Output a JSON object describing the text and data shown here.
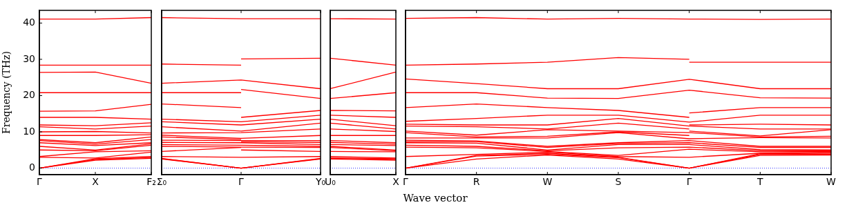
{
  "chart_data": [
    {
      "type": "line",
      "ylabel": "Frequency (THz)",
      "categories": [
        "Γ",
        "X",
        "F₂"
      ],
      "ylim": [
        -1.8,
        43.5
      ],
      "yticks": [
        0,
        10,
        20,
        30,
        40
      ],
      "marker": "none",
      "ref_lines": [
        {
          "axis": "y",
          "value": 0,
          "color": "#0000ff",
          "line_style": "dotted"
        }
      ],
      "series": [
        {
          "color": "#ff0000",
          "values": [
            0,
            2.2,
            2.7
          ]
        },
        {
          "color": "#ff0000",
          "values": [
            0,
            2.4,
            2.9
          ]
        },
        {
          "color": "#ff0000",
          "values": [
            0,
            2.6,
            3.2
          ]
        },
        {
          "color": "#ff0000",
          "values": [
            3.0,
            2.8,
            4.4
          ]
        },
        {
          "color": "#ff0000",
          "values": [
            3.2,
            4.5,
            4.8
          ]
        },
        {
          "color": "#ff0000",
          "values": [
            5.0,
            4.8,
            6.3
          ]
        },
        {
          "color": "#ff0000",
          "values": [
            6.0,
            5.0,
            6.7
          ]
        },
        {
          "color": "#ff0000",
          "values": [
            7.0,
            6.2,
            7.0
          ]
        },
        {
          "color": "#ff0000",
          "values": [
            7.6,
            6.6,
            7.9
          ]
        },
        {
          "color": "#ff0000",
          "values": [
            7.9,
            7.0,
            8.6
          ]
        },
        {
          "color": "#ff0000",
          "values": [
            9.0,
            9.0,
            9.2
          ]
        },
        {
          "color": "#ff0000",
          "values": [
            10.0,
            10.1,
            9.7
          ]
        },
        {
          "color": "#ff0000",
          "values": [
            11.4,
            10.8,
            11.6
          ]
        },
        {
          "color": "#ff0000",
          "values": [
            11.9,
            11.7,
            12.5
          ]
        },
        {
          "color": "#ff0000",
          "values": [
            14.0,
            14.0,
            13.5
          ]
        },
        {
          "color": "#ff0000",
          "values": [
            15.7,
            15.8,
            17.6
          ]
        },
        {
          "color": "#ff0000",
          "values": [
            20.8,
            20.8,
            20.8
          ]
        },
        {
          "color": "#ff0000",
          "values": [
            26.4,
            26.5,
            23.4
          ]
        },
        {
          "color": "#ff0000",
          "values": [
            28.4,
            28.4,
            28.4
          ]
        },
        {
          "color": "#ff0000",
          "values": [
            41.1,
            41.1,
            41.5
          ]
        }
      ]
    },
    {
      "type": "line",
      "categories": [
        "Σ₀",
        "Γ",
        "Y₀"
      ],
      "ylim": [
        -1.8,
        43.5
      ],
      "yticks": [
        0,
        10,
        20,
        30,
        40
      ],
      "tick_labels": "x",
      "marker": "none",
      "ref_lines": [
        {
          "axis": "y",
          "value": 0,
          "color": "#0000ff",
          "line_style": "dotted"
        }
      ],
      "series": [
        {
          "color": "#ff0000",
          "values": [
            2.5,
            0,
            2.5
          ]
        },
        {
          "color": "#ff0000",
          "values": [
            2.7,
            0,
            2.7
          ]
        },
        {
          "color": "#ff0000",
          "values": [
            2.6,
            0,
            2.6
          ]
        },
        {
          "color": "#ff0000",
          "values": [
            3.2,
            3.0,
            3.2
          ]
        },
        {
          "color": "#ff0000",
          "values": [
            6.0,
            5.8,
            5.7
          ]
        },
        {
          "color": "#ff0000",
          "values": [
            6.5,
            6.3,
            6.0
          ]
        },
        {
          "color": "#ff0000",
          "values": [
            7.1,
            7.0,
            6.5
          ]
        },
        {
          "color": "#ff0000",
          "values": [
            7.7,
            7.6,
            7.6
          ]
        },
        {
          "color": "#ff0000",
          "values": [
            9.1,
            8.2,
            9.0
          ]
        },
        {
          "color": "#ff0000",
          "values": [
            9.7,
            9.8,
            10.8
          ]
        },
        {
          "color": "#ff0000",
          "values": [
            11.4,
            10.2,
            12.4
          ]
        },
        {
          "color": "#ff0000",
          "values": [
            12.8,
            11.9,
            13.5
          ]
        },
        {
          "color": "#ff0000",
          "values": [
            13.5,
            12.8,
            14.6
          ]
        },
        {
          "color": "#ff0000",
          "values": [
            23.4,
            24.3,
            21.9
          ]
        },
        {
          "color": "#ff0000",
          "values": [
            41.5,
            41.2,
            41.2
          ]
        },
        {
          "color": "#ff0000",
          "values": [
            4.6,
            5.7,
            null
          ]
        },
        {
          "color": "#ff0000",
          "values": [
            8.6,
            7.9,
            null
          ]
        },
        {
          "color": "#ff0000",
          "values": [
            17.7,
            16.7,
            null
          ]
        },
        {
          "color": "#ff0000",
          "values": [
            20.8,
            20.8,
            null
          ]
        },
        {
          "color": "#ff0000",
          "values": [
            28.7,
            28.4,
            null
          ]
        },
        {
          "color": "#ff0000",
          "values": [
            null,
            5.0,
            4.6
          ]
        },
        {
          "color": "#ff0000",
          "values": [
            null,
            7.3,
            7.1
          ]
        },
        {
          "color": "#ff0000",
          "values": [
            null,
            14.0,
            15.9
          ]
        },
        {
          "color": "#ff0000",
          "values": [
            null,
            21.7,
            19.2
          ]
        },
        {
          "color": "#ff0000",
          "values": [
            null,
            30.1,
            30.3
          ]
        }
      ]
    },
    {
      "type": "line",
      "categories": [
        "U₀",
        "X"
      ],
      "ylim": [
        -1.8,
        43.5
      ],
      "yticks": [
        0,
        10,
        20,
        30,
        40
      ],
      "tick_labels": "x",
      "marker": "none",
      "ref_lines": [
        {
          "axis": "y",
          "value": 0,
          "color": "#0000ff",
          "line_style": "dotted"
        }
      ],
      "series": [
        {
          "color": "#ff0000",
          "values": [
            2.5,
            2.2
          ]
        },
        {
          "color": "#ff0000",
          "values": [
            2.7,
            2.4
          ]
        },
        {
          "color": "#ff0000",
          "values": [
            2.8,
            2.6
          ]
        },
        {
          "color": "#ff0000",
          "values": [
            3.2,
            2.8
          ]
        },
        {
          "color": "#ff0000",
          "values": [
            4.6,
            4.5
          ]
        },
        {
          "color": "#ff0000",
          "values": [
            5.7,
            4.8
          ]
        },
        {
          "color": "#ff0000",
          "values": [
            6.0,
            5.0
          ]
        },
        {
          "color": "#ff0000",
          "values": [
            6.5,
            6.2
          ]
        },
        {
          "color": "#ff0000",
          "values": [
            7.1,
            6.6
          ]
        },
        {
          "color": "#ff0000",
          "values": [
            7.6,
            7.0
          ]
        },
        {
          "color": "#ff0000",
          "values": [
            9.0,
            9.0
          ]
        },
        {
          "color": "#ff0000",
          "values": [
            10.8,
            10.1
          ]
        },
        {
          "color": "#ff0000",
          "values": [
            12.4,
            10.8
          ]
        },
        {
          "color": "#ff0000",
          "values": [
            13.5,
            11.7
          ]
        },
        {
          "color": "#ff0000",
          "values": [
            14.6,
            14.0
          ]
        },
        {
          "color": "#ff0000",
          "values": [
            15.9,
            15.8
          ]
        },
        {
          "color": "#ff0000",
          "values": [
            19.2,
            20.8
          ]
        },
        {
          "color": "#ff0000",
          "values": [
            21.9,
            26.5
          ]
        },
        {
          "color": "#ff0000",
          "values": [
            30.3,
            28.4
          ]
        },
        {
          "color": "#ff0000",
          "values": [
            41.2,
            41.1
          ]
        }
      ]
    },
    {
      "type": "line",
      "xlabel": "Wave vector",
      "categories": [
        "Γ",
        "R",
        "W",
        "S",
        "Γ",
        "T",
        "W"
      ],
      "ylim": [
        -1.8,
        43.5
      ],
      "yticks": [
        0,
        10,
        20,
        30,
        40
      ],
      "tick_labels": "x",
      "marker": "none",
      "ref_lines": [
        {
          "axis": "y",
          "value": 0,
          "color": "#0000ff",
          "line_style": "dotted"
        }
      ],
      "series": [
        {
          "color": "#ff0000",
          "values": [
            0,
            2.5,
            3.6,
            2.5,
            0,
            3.5,
            3.6
          ]
        },
        {
          "color": "#ff0000",
          "values": [
            0,
            3.3,
            3.8,
            2.9,
            0,
            3.8,
            3.8
          ]
        },
        {
          "color": "#ff0000",
          "values": [
            0,
            3.5,
            4.1,
            3.0,
            0,
            4.0,
            4.1
          ]
        },
        {
          "color": "#ff0000",
          "values": [
            3.2,
            3.8,
            4.4,
            3.2,
            3.0,
            4.1,
            4.4
          ]
        },
        {
          "color": "#ff0000",
          "values": [
            5.8,
            5.6,
            4.6,
            3.5,
            5.2,
            4.5,
            4.6
          ]
        },
        {
          "color": "#ff0000",
          "values": [
            6.3,
            6.0,
            4.8,
            5.6,
            5.8,
            4.8,
            4.8
          ]
        },
        {
          "color": "#ff0000",
          "values": [
            7.0,
            6.9,
            5.0,
            6.5,
            6.5,
            5.1,
            5.0
          ]
        },
        {
          "color": "#ff0000",
          "values": [
            7.3,
            7.3,
            5.7,
            6.8,
            7.0,
            5.7,
            5.7
          ]
        },
        {
          "color": "#ff0000",
          "values": [
            7.7,
            7.5,
            6.0,
            7.0,
            7.6,
            6.0,
            6.0
          ]
        },
        {
          "color": "#ff0000",
          "values": [
            8.3,
            8.3,
            8.3,
            9.8,
            8.1,
            8.4,
            8.3
          ]
        },
        {
          "color": "#ff0000",
          "values": [
            10.2,
            9.1,
            10.6,
            10.2,
            9.8,
            8.6,
            8.8
          ]
        },
        {
          "color": "#ff0000",
          "values": [
            12.1,
            11.9,
            11.9,
            13.7,
            11.6,
            10.8,
            10.8
          ]
        },
        {
          "color": "#ff0000",
          "values": [
            12.9,
            13.7,
            14.6,
            14.6,
            12.7,
            14.6,
            14.6
          ]
        },
        {
          "color": "#ff0000",
          "values": [
            20.8,
            20.8,
            19.3,
            19.2,
            21.5,
            19.4,
            19.3
          ]
        },
        {
          "color": "#ff0000",
          "values": [
            24.6,
            23.3,
            21.9,
            21.9,
            24.5,
            21.9,
            21.9
          ]
        },
        {
          "color": "#ff0000",
          "values": [
            41.3,
            41.5,
            41.1,
            41.3,
            41.1,
            41.0,
            41.1
          ]
        },
        {
          "color": "#ff0000",
          "values": [
            9.8,
            8.6,
            8.8,
            10.0,
            9.0,
            null,
            null
          ]
        },
        {
          "color": "#ff0000",
          "values": [
            11.6,
            11.4,
            10.8,
            12.4,
            10.8,
            null,
            null
          ]
        },
        {
          "color": "#ff0000",
          "values": [
            16.7,
            17.7,
            16.7,
            15.9,
            14.0,
            null,
            null
          ]
        },
        {
          "color": "#ff0000",
          "values": [
            28.4,
            28.7,
            29.2,
            30.5,
            30.0,
            null,
            null
          ]
        },
        {
          "color": "#ff0000",
          "values": [
            null,
            null,
            null,
            null,
            10.2,
            8.9,
            10.6
          ]
        },
        {
          "color": "#ff0000",
          "values": [
            null,
            null,
            null,
            null,
            11.9,
            12.1,
            11.9
          ]
        },
        {
          "color": "#ff0000",
          "values": [
            null,
            null,
            null,
            null,
            15.2,
            16.7,
            16.7
          ]
        },
        {
          "color": "#ff0000",
          "values": [
            null,
            null,
            null,
            null,
            29.2,
            29.2,
            29.2
          ]
        }
      ]
    }
  ]
}
